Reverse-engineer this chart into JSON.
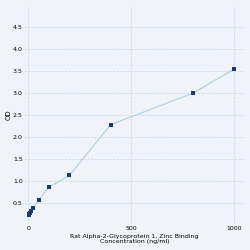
{
  "x": [
    1.5625,
    3.125,
    6.25,
    12.5,
    25,
    50,
    100,
    200,
    400,
    800,
    1000
  ],
  "y": [
    0.212,
    0.228,
    0.253,
    0.305,
    0.385,
    0.555,
    0.85,
    1.12,
    2.28,
    3.0,
    3.55
  ],
  "line_color": "#b0cce0",
  "marker_color": "#1a3a6b",
  "marker_size": 10,
  "xlabel_line1": "Rat Alpha-2-Glycoprotein 1, Zinc Binding",
  "xlabel_line2": "Concentration (ng/ml)",
  "ylabel": "OD",
  "xlim": [
    -20,
    1050
  ],
  "ylim": [
    0,
    5.0
  ],
  "yticks": [
    0.5,
    1.0,
    1.5,
    2.0,
    2.5,
    3.0,
    3.5,
    4.0,
    4.5
  ],
  "xticks": [
    0,
    500,
    1000
  ],
  "xtick_labels": [
    "0",
    "500",
    "1000"
  ],
  "grid_color": "#c8d8ea",
  "bg_color": "#f0f4fa",
  "xlabel_fontsize": 4.5,
  "ylabel_fontsize": 5,
  "tick_fontsize": 4.5
}
